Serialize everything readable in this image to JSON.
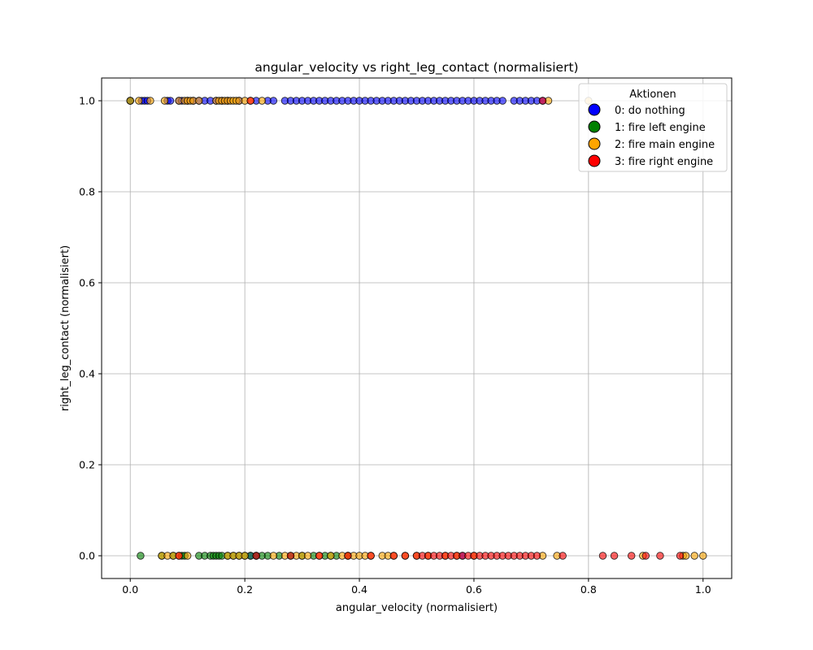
{
  "chart_data": {
    "type": "scatter",
    "title": "angular_velocity vs right_leg_contact (normalisiert)",
    "xlabel": "angular_velocity (normalisiert)",
    "ylabel": "right_leg_contact (normalisiert)",
    "xlim": [
      -0.05,
      1.05
    ],
    "ylim": [
      -0.05,
      1.05
    ],
    "xticks": [
      "0.0",
      "0.2",
      "0.4",
      "0.6",
      "0.8",
      "1.0"
    ],
    "yticks": [
      "0.0",
      "0.2",
      "0.4",
      "0.6",
      "0.8",
      "1.0"
    ],
    "grid": true,
    "legend": {
      "title": "Aktionen",
      "position": "top-right",
      "entries": [
        "0: do nothing",
        "1: fire left engine",
        "2: fire main engine",
        "3: fire right engine"
      ]
    },
    "series": [
      {
        "name": "0: do nothing",
        "color": "#0000ff",
        "points": [
          [
            0.0,
            1
          ],
          [
            0.02,
            1
          ],
          [
            0.025,
            1
          ],
          [
            0.03,
            1
          ],
          [
            0.065,
            1
          ],
          [
            0.07,
            1
          ],
          [
            0.085,
            1
          ],
          [
            0.09,
            1
          ],
          [
            0.1,
            1
          ],
          [
            0.11,
            1
          ],
          [
            0.12,
            1
          ],
          [
            0.13,
            1
          ],
          [
            0.14,
            1
          ],
          [
            0.15,
            1
          ],
          [
            0.16,
            1
          ],
          [
            0.17,
            1
          ],
          [
            0.19,
            1
          ],
          [
            0.22,
            1
          ],
          [
            0.24,
            1
          ],
          [
            0.25,
            1
          ],
          [
            0.27,
            1
          ],
          [
            0.28,
            1
          ],
          [
            0.29,
            1
          ],
          [
            0.3,
            1
          ],
          [
            0.31,
            1
          ],
          [
            0.32,
            1
          ],
          [
            0.33,
            1
          ],
          [
            0.34,
            1
          ],
          [
            0.35,
            1
          ],
          [
            0.36,
            1
          ],
          [
            0.37,
            1
          ],
          [
            0.38,
            1
          ],
          [
            0.39,
            1
          ],
          [
            0.4,
            1
          ],
          [
            0.41,
            1
          ],
          [
            0.42,
            1
          ],
          [
            0.43,
            1
          ],
          [
            0.44,
            1
          ],
          [
            0.45,
            1
          ],
          [
            0.46,
            1
          ],
          [
            0.47,
            1
          ],
          [
            0.48,
            1
          ],
          [
            0.49,
            1
          ],
          [
            0.5,
            1
          ],
          [
            0.51,
            1
          ],
          [
            0.52,
            1
          ],
          [
            0.53,
            1
          ],
          [
            0.54,
            1
          ],
          [
            0.55,
            1
          ],
          [
            0.56,
            1
          ],
          [
            0.57,
            1
          ],
          [
            0.58,
            1
          ],
          [
            0.59,
            1
          ],
          [
            0.6,
            1
          ],
          [
            0.61,
            1
          ],
          [
            0.62,
            1
          ],
          [
            0.63,
            1
          ],
          [
            0.64,
            1
          ],
          [
            0.65,
            1
          ],
          [
            0.67,
            1
          ],
          [
            0.68,
            1
          ],
          [
            0.69,
            1
          ],
          [
            0.7,
            1
          ],
          [
            0.71,
            1
          ],
          [
            0.72,
            1
          ],
          [
            0.21,
            0
          ],
          [
            0.22,
            0
          ],
          [
            0.58,
            0
          ]
        ]
      },
      {
        "name": "1: fire left engine",
        "color": "#008000",
        "points": [
          [
            0.0,
            1
          ],
          [
            0.018,
            0
          ],
          [
            0.055,
            0
          ],
          [
            0.075,
            0
          ],
          [
            0.09,
            0
          ],
          [
            0.095,
            0
          ],
          [
            0.12,
            0
          ],
          [
            0.13,
            0
          ],
          [
            0.14,
            0
          ],
          [
            0.145,
            0
          ],
          [
            0.15,
            0
          ],
          [
            0.155,
            0
          ],
          [
            0.16,
            0
          ],
          [
            0.17,
            0
          ],
          [
            0.18,
            0
          ],
          [
            0.19,
            0
          ],
          [
            0.2,
            0
          ],
          [
            0.21,
            0
          ],
          [
            0.22,
            0
          ],
          [
            0.23,
            0
          ],
          [
            0.24,
            0
          ],
          [
            0.26,
            0
          ],
          [
            0.28,
            0
          ],
          [
            0.3,
            0
          ],
          [
            0.32,
            0
          ],
          [
            0.34,
            0
          ],
          [
            0.35,
            0
          ],
          [
            0.36,
            0
          ],
          [
            0.38,
            0
          ]
        ]
      },
      {
        "name": "2: fire main engine",
        "color": "#ffa500",
        "points": [
          [
            0.0,
            1
          ],
          [
            0.015,
            1
          ],
          [
            0.035,
            1
          ],
          [
            0.06,
            1
          ],
          [
            0.085,
            1
          ],
          [
            0.095,
            1
          ],
          [
            0.1,
            1
          ],
          [
            0.105,
            1
          ],
          [
            0.11,
            1
          ],
          [
            0.12,
            1
          ],
          [
            0.15,
            1
          ],
          [
            0.155,
            1
          ],
          [
            0.16,
            1
          ],
          [
            0.165,
            1
          ],
          [
            0.17,
            1
          ],
          [
            0.175,
            1
          ],
          [
            0.18,
            1
          ],
          [
            0.185,
            1
          ],
          [
            0.19,
            1
          ],
          [
            0.2,
            1
          ],
          [
            0.21,
            1
          ],
          [
            0.23,
            1
          ],
          [
            0.73,
            1
          ],
          [
            0.8,
            1
          ],
          [
            0.055,
            0
          ],
          [
            0.065,
            0
          ],
          [
            0.075,
            0
          ],
          [
            0.085,
            0
          ],
          [
            0.1,
            0
          ],
          [
            0.17,
            0
          ],
          [
            0.18,
            0
          ],
          [
            0.19,
            0
          ],
          [
            0.2,
            0
          ],
          [
            0.25,
            0
          ],
          [
            0.27,
            0
          ],
          [
            0.29,
            0
          ],
          [
            0.3,
            0
          ],
          [
            0.31,
            0
          ],
          [
            0.33,
            0
          ],
          [
            0.35,
            0
          ],
          [
            0.37,
            0
          ],
          [
            0.38,
            0
          ],
          [
            0.39,
            0
          ],
          [
            0.4,
            0
          ],
          [
            0.41,
            0
          ],
          [
            0.42,
            0
          ],
          [
            0.44,
            0
          ],
          [
            0.45,
            0
          ],
          [
            0.46,
            0
          ],
          [
            0.48,
            0
          ],
          [
            0.5,
            0
          ],
          [
            0.52,
            0
          ],
          [
            0.55,
            0
          ],
          [
            0.57,
            0
          ],
          [
            0.6,
            0
          ],
          [
            0.72,
            0
          ],
          [
            0.745,
            0
          ],
          [
            0.895,
            0
          ],
          [
            0.965,
            0
          ],
          [
            0.97,
            0
          ],
          [
            0.985,
            0
          ],
          [
            1.0,
            0
          ]
        ]
      },
      {
        "name": "3: fire right engine",
        "color": "#ff0000",
        "points": [
          [
            0.21,
            1
          ],
          [
            0.72,
            1
          ],
          [
            0.085,
            0
          ],
          [
            0.22,
            0
          ],
          [
            0.28,
            0
          ],
          [
            0.33,
            0
          ],
          [
            0.38,
            0
          ],
          [
            0.42,
            0
          ],
          [
            0.46,
            0
          ],
          [
            0.48,
            0
          ],
          [
            0.5,
            0
          ],
          [
            0.51,
            0
          ],
          [
            0.52,
            0
          ],
          [
            0.53,
            0
          ],
          [
            0.54,
            0
          ],
          [
            0.55,
            0
          ],
          [
            0.56,
            0
          ],
          [
            0.57,
            0
          ],
          [
            0.58,
            0
          ],
          [
            0.59,
            0
          ],
          [
            0.6,
            0
          ],
          [
            0.61,
            0
          ],
          [
            0.62,
            0
          ],
          [
            0.63,
            0
          ],
          [
            0.64,
            0
          ],
          [
            0.65,
            0
          ],
          [
            0.66,
            0
          ],
          [
            0.67,
            0
          ],
          [
            0.68,
            0
          ],
          [
            0.69,
            0
          ],
          [
            0.7,
            0
          ],
          [
            0.71,
            0
          ],
          [
            0.755,
            0
          ],
          [
            0.825,
            0
          ],
          [
            0.845,
            0
          ],
          [
            0.875,
            0
          ],
          [
            0.9,
            0
          ],
          [
            0.925,
            0
          ],
          [
            0.96,
            0
          ]
        ]
      }
    ]
  }
}
